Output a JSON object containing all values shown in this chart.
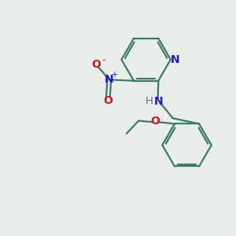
{
  "bg_color": "#eaeeea",
  "bond_color": "#3a7a6a",
  "n_color": "#1a1acc",
  "o_color": "#cc1a1a",
  "h_color": "#666666",
  "line_width": 1.6,
  "fig_size": [
    3.0,
    3.0
  ],
  "dpi": 100,
  "xlim": [
    0,
    10
  ],
  "ylim": [
    0,
    10
  ]
}
